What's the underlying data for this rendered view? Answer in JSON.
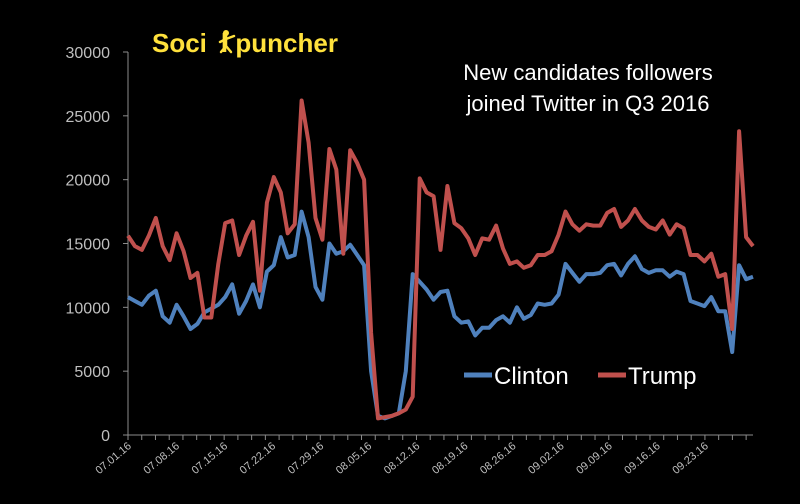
{
  "brand": {
    "text_part1": "Soci",
    "text_part2": "l puncher",
    "logo_name": "social-puncher-logo",
    "color": "#ffe13c"
  },
  "chart_data": {
    "type": "line",
    "title": "New candidates followers joined Twitter in Q3 2016",
    "title_lines": [
      "New candidates followers",
      "joined Twitter in Q3 2016"
    ],
    "xlabel": "",
    "ylabel": "",
    "ylim": [
      0,
      30000
    ],
    "yticks": [
      0,
      5000,
      10000,
      15000,
      20000,
      25000,
      30000
    ],
    "ytick_labels": [
      "0",
      "5000",
      "10000",
      "15000",
      "20000",
      "25000",
      "30000"
    ],
    "grid": false,
    "legend_position": "bottom-right",
    "x_start": "2016-07-01",
    "x_end": "2016-09-30",
    "x_tick_labels": [
      "07.01.16",
      "07.08.16",
      "07.15.16",
      "07.22.16",
      "07.29.16",
      "08.05.16",
      "08.12.16",
      "08.19.16",
      "08.26.16",
      "09.02.16",
      "09.09.16",
      "09.16.16",
      "09.23.16"
    ],
    "series": [
      {
        "name": "Clinton",
        "color": "#4f81bd",
        "values": [
          10800,
          10500,
          10200,
          10900,
          11300,
          9300,
          8800,
          10200,
          9300,
          8300,
          8700,
          9600,
          9900,
          10200,
          10800,
          11800,
          9500,
          10500,
          11800,
          10000,
          12800,
          13300,
          15500,
          13900,
          14100,
          17500,
          15500,
          11600,
          10600,
          15000,
          14200,
          14400,
          14900,
          14100,
          13300,
          5000,
          1500,
          1300,
          1500,
          1700,
          5000,
          12600,
          12000,
          11400,
          10600,
          11200,
          11300,
          9300,
          8800,
          8900,
          7800,
          8400,
          8400,
          9000,
          9300,
          8800,
          10000,
          9100,
          9400,
          10300,
          10200,
          10300,
          11000,
          13400,
          12700,
          12000,
          12600,
          12600,
          12700,
          13300,
          13400,
          12500,
          13400,
          14000,
          13000,
          12700,
          12900,
          12900,
          12400,
          12800,
          12600,
          10500,
          10300,
          10100,
          10800,
          9700,
          9700,
          6500,
          13300,
          12200,
          12400
        ]
      },
      {
        "name": "Trump",
        "color": "#c0504d",
        "values": [
          15600,
          14800,
          14500,
          15600,
          17000,
          14800,
          13700,
          15800,
          14400,
          12300,
          12700,
          9200,
          9200,
          13400,
          16600,
          16800,
          14100,
          15600,
          16700,
          11300,
          18200,
          20200,
          19000,
          15800,
          16500,
          26200,
          22900,
          17000,
          15300,
          22400,
          20800,
          14200,
          22300,
          21300,
          20000,
          8000,
          1300,
          1400,
          1500,
          1700,
          2000,
          3000,
          20100,
          19000,
          18700,
          14500,
          19500,
          16600,
          16200,
          15400,
          14100,
          15400,
          15300,
          16400,
          14600,
          13400,
          13600,
          13100,
          13300,
          14100,
          14100,
          14400,
          15700,
          17500,
          16500,
          16000,
          16500,
          16400,
          16400,
          17400,
          17700,
          16300,
          16800,
          17700,
          16800,
          16300,
          16100,
          16800,
          15700,
          16500,
          16200,
          14100,
          14100,
          13600,
          14200,
          12400,
          12600,
          8300,
          23800,
          15500,
          14800
        ]
      }
    ]
  }
}
